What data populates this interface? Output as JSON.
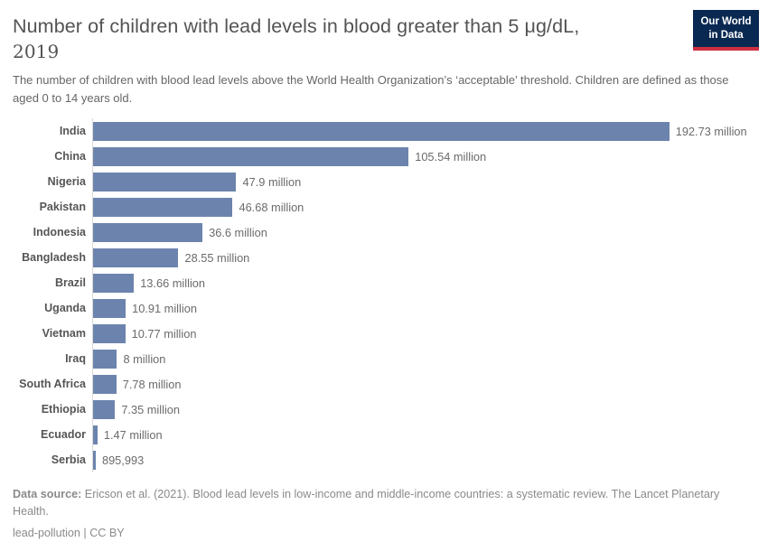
{
  "logo": {
    "line1": "Our World",
    "line2": "in Data",
    "bg_color": "#0a2952",
    "accent_color": "#cf2e41"
  },
  "header": {
    "title_line1": "Number of children with lead levels in blood greater than 5 μg/dL,",
    "title_line2": "2019",
    "subtitle": "The number of children with blood lead levels above the World Health Organization’s ‘acceptable’ threshold. Children are defined as those aged 0 to 14 years old."
  },
  "chart_data": {
    "type": "bar",
    "orientation": "horizontal",
    "title": "Number of children with lead levels in blood greater than 5 μg/dL, 2019",
    "unit": "children",
    "bar_color": "#6c84ad",
    "axis_line_color": "#d9d9d9",
    "max_value_millions": 192.73,
    "max_bar_pct": 87,
    "categories": [
      "India",
      "China",
      "Nigeria",
      "Pakistan",
      "Indonesia",
      "Bangladesh",
      "Brazil",
      "Uganda",
      "Vietnam",
      "Iraq",
      "South Africa",
      "Ethiopia",
      "Ecuador",
      "Serbia"
    ],
    "values_millions": [
      192.73,
      105.54,
      47.9,
      46.68,
      36.6,
      28.55,
      13.66,
      10.91,
      10.77,
      8,
      7.78,
      7.35,
      1.47,
      0.895993
    ],
    "rows": [
      {
        "label": "India",
        "value_millions": 192.73,
        "value_label": "192.73 million"
      },
      {
        "label": "China",
        "value_millions": 105.54,
        "value_label": "105.54 million"
      },
      {
        "label": "Nigeria",
        "value_millions": 47.9,
        "value_label": "47.9 million"
      },
      {
        "label": "Pakistan",
        "value_millions": 46.68,
        "value_label": "46.68 million"
      },
      {
        "label": "Indonesia",
        "value_millions": 36.6,
        "value_label": "36.6 million"
      },
      {
        "label": "Bangladesh",
        "value_millions": 28.55,
        "value_label": "28.55 million"
      },
      {
        "label": "Brazil",
        "value_millions": 13.66,
        "value_label": "13.66 million"
      },
      {
        "label": "Uganda",
        "value_millions": 10.91,
        "value_label": "10.91 million"
      },
      {
        "label": "Vietnam",
        "value_millions": 10.77,
        "value_label": "10.77 million"
      },
      {
        "label": "Iraq",
        "value_millions": 8,
        "value_label": "8 million"
      },
      {
        "label": "South Africa",
        "value_millions": 7.78,
        "value_label": "7.78 million"
      },
      {
        "label": "Ethiopia",
        "value_millions": 7.35,
        "value_label": "7.35 million"
      },
      {
        "label": "Ecuador",
        "value_millions": 1.47,
        "value_label": "1.47 million"
      },
      {
        "label": "Serbia",
        "value_millions": 0.895993,
        "value_label": "895,993"
      }
    ]
  },
  "footer": {
    "source_label": "Data source:",
    "source_text": " Ericson et al. (2021). Blood lead levels in low-income and middle-income countries: a systematic review. The Lancet Planetary Health.",
    "slug": "lead-pollution",
    "separator": " | ",
    "license": "CC BY"
  }
}
